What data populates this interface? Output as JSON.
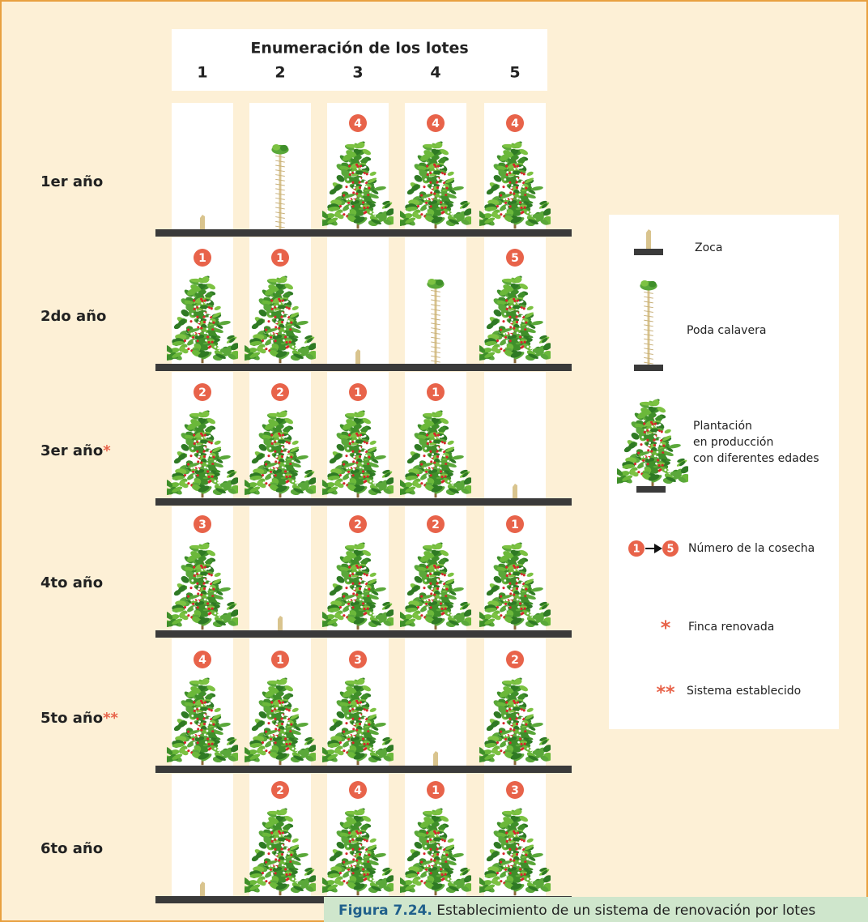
{
  "header": {
    "title": "Enumeración de los lotes",
    "lots": [
      "1",
      "2",
      "3",
      "4",
      "5"
    ]
  },
  "rows": [
    {
      "label": "1er año",
      "cells": [
        {
          "kind": "zoca"
        },
        {
          "kind": "poda"
        },
        {
          "kind": "plant",
          "harvest": 4
        },
        {
          "kind": "plant",
          "harvest": 4
        },
        {
          "kind": "plant",
          "harvest": 4
        }
      ]
    },
    {
      "label": "2do año",
      "cells": [
        {
          "kind": "plant",
          "harvest": 1
        },
        {
          "kind": "plant",
          "harvest": 1
        },
        {
          "kind": "zoca"
        },
        {
          "kind": "poda"
        },
        {
          "kind": "plant",
          "harvest": 5
        }
      ]
    },
    {
      "label": "3er año",
      "mark": "*",
      "cells": [
        {
          "kind": "plant",
          "harvest": 2
        },
        {
          "kind": "plant",
          "harvest": 2
        },
        {
          "kind": "plant",
          "harvest": 1
        },
        {
          "kind": "plant",
          "harvest": 1
        },
        {
          "kind": "zoca"
        }
      ]
    },
    {
      "label": "4to año",
      "cells": [
        {
          "kind": "plant",
          "harvest": 3
        },
        {
          "kind": "zoca"
        },
        {
          "kind": "plant",
          "harvest": 2
        },
        {
          "kind": "plant",
          "harvest": 2
        },
        {
          "kind": "plant",
          "harvest": 1
        }
      ]
    },
    {
      "label": "5to año",
      "mark": "**",
      "cells": [
        {
          "kind": "plant",
          "harvest": 4
        },
        {
          "kind": "plant",
          "harvest": 1
        },
        {
          "kind": "plant",
          "harvest": 3
        },
        {
          "kind": "zoca"
        },
        {
          "kind": "plant",
          "harvest": 2
        }
      ]
    },
    {
      "label": "6to año",
      "cells": [
        {
          "kind": "zoca"
        },
        {
          "kind": "plant",
          "harvest": 2
        },
        {
          "kind": "plant",
          "harvest": 4
        },
        {
          "kind": "plant",
          "harvest": 1
        },
        {
          "kind": "plant",
          "harvest": 3
        }
      ]
    }
  ],
  "legend": {
    "zoca": "Zoca",
    "poda": "Poda calavera",
    "plant": [
      "Plantación",
      "en producción",
      "con diferentes edades"
    ],
    "harvest": {
      "from": 1,
      "to": 5,
      "text": "Número de la cosecha"
    },
    "renovada": {
      "symbol": "*",
      "text": "Finca renovada"
    },
    "establecido": {
      "symbol": "**",
      "text": "Sistema establecido"
    }
  },
  "caption": {
    "label": "Figura 7.24.",
    "text": " Establecimiento de un sistema de renovación por lotes"
  }
}
